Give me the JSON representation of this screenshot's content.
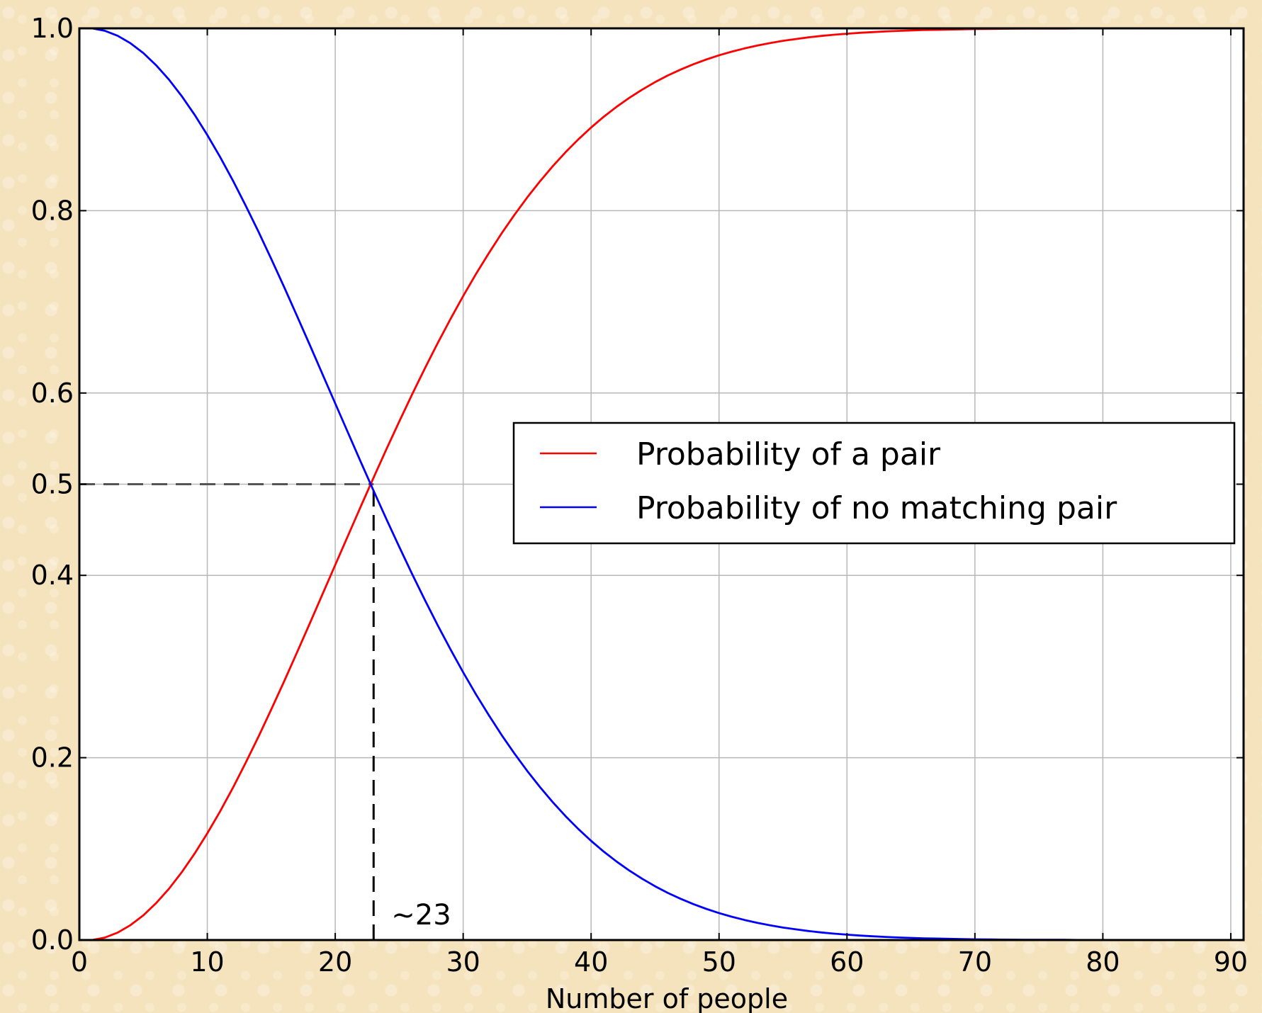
{
  "chart_data": {
    "type": "line",
    "xlabel": "Number of people",
    "ylabel": "",
    "xlim": [
      0,
      91
    ],
    "ylim": [
      0,
      1.0
    ],
    "x_ticks": [
      0,
      10,
      20,
      30,
      40,
      50,
      60,
      70,
      80,
      90
    ],
    "x_tick_labels": [
      "0",
      "10",
      "20",
      "30",
      "40",
      "50",
      "60",
      "70",
      "80",
      "90"
    ],
    "y_ticks": [
      0.0,
      0.2,
      0.4,
      0.5,
      0.6,
      0.8,
      1.0
    ],
    "y_tick_labels": [
      "0.0",
      "0.2",
      "0.4",
      "0.5",
      "0.6",
      "0.8",
      "1.0"
    ],
    "grid": true,
    "legend_position": "center-right",
    "x": [
      0,
      1,
      2,
      3,
      4,
      5,
      6,
      7,
      8,
      9,
      10,
      11,
      12,
      13,
      14,
      15,
      16,
      17,
      18,
      19,
      20,
      21,
      22,
      23,
      24,
      25,
      26,
      27,
      28,
      29,
      30,
      31,
      32,
      33,
      34,
      35,
      36,
      37,
      38,
      39,
      40,
      41,
      42,
      43,
      44,
      45,
      46,
      47,
      48,
      49,
      50,
      51,
      52,
      53,
      54,
      55,
      56,
      57,
      58,
      59,
      60,
      61,
      62,
      63,
      64,
      65,
      66,
      67,
      68,
      69,
      70,
      71,
      72,
      73,
      74,
      75,
      76,
      77,
      78,
      79,
      80,
      81,
      82,
      83,
      84,
      85,
      86,
      87,
      88,
      89,
      90,
      91
    ],
    "series": [
      {
        "name": "Probability of a pair",
        "color": "#ff0000",
        "values": [
          0,
          0,
          0.0027,
          0.0082,
          0.0164,
          0.0271,
          0.0405,
          0.0562,
          0.0743,
          0.0946,
          0.1169,
          0.1411,
          0.167,
          0.1944,
          0.2231,
          0.2529,
          0.2836,
          0.315,
          0.3469,
          0.3791,
          0.4114,
          0.4437,
          0.4757,
          0.5073,
          0.5383,
          0.5687,
          0.5982,
          0.6269,
          0.6545,
          0.681,
          0.7063,
          0.7305,
          0.7533,
          0.775,
          0.7953,
          0.8144,
          0.8322,
          0.8487,
          0.8641,
          0.8782,
          0.8912,
          0.9032,
          0.914,
          0.9239,
          0.9329,
          0.941,
          0.9483,
          0.9548,
          0.9606,
          0.9658,
          0.9704,
          0.9744,
          0.978,
          0.9811,
          0.9839,
          0.9863,
          0.9883,
          0.9901,
          0.9917,
          0.993,
          0.9941,
          0.9951,
          0.9959,
          0.9966,
          0.9972,
          0.9977,
          0.9981,
          0.9984,
          0.9987,
          0.999,
          0.9992,
          0.9993,
          0.9995,
          0.9996,
          0.9997,
          0.9997,
          0.9998,
          0.9998,
          0.9999,
          0.9999,
          0.9999,
          0.9999,
          1.0,
          1.0,
          1.0,
          1.0,
          1.0,
          1.0,
          1.0,
          1.0,
          1.0,
          1.0
        ]
      },
      {
        "name": "Probability of no matching pair",
        "color": "#0000ff",
        "values": [
          1,
          1,
          0.9973,
          0.9918,
          0.9836,
          0.9729,
          0.9595,
          0.9438,
          0.9257,
          0.9054,
          0.8831,
          0.8589,
          0.833,
          0.8056,
          0.7769,
          0.7471,
          0.7164,
          0.685,
          0.6531,
          0.6209,
          0.5886,
          0.5563,
          0.5243,
          0.4927,
          0.4617,
          0.4313,
          0.4018,
          0.3731,
          0.3455,
          0.319,
          0.2937,
          0.2695,
          0.2467,
          0.225,
          0.2047,
          0.1856,
          0.1678,
          0.1513,
          0.1359,
          0.1218,
          0.1088,
          0.0968,
          0.086,
          0.0761,
          0.0671,
          0.059,
          0.0517,
          0.0452,
          0.0394,
          0.0342,
          0.0296,
          0.0256,
          0.022,
          0.0189,
          0.0161,
          0.0137,
          0.0117,
          0.0099,
          0.0083,
          0.007,
          0.0059,
          0.0049,
          0.0041,
          0.0034,
          0.0028,
          0.0023,
          0.0019,
          0.0016,
          0.0013,
          0.001,
          0.0008,
          0.0007,
          0.0005,
          0.0004,
          0.0003,
          0.0003,
          0.0002,
          0.0002,
          0.0001,
          0.0001,
          0.0001,
          0.0001,
          0,
          0,
          0,
          0,
          0,
          0,
          0,
          0,
          0,
          0
        ]
      }
    ],
    "annotations": [
      {
        "text": "~23",
        "x": 23,
        "y": 0.5
      }
    ],
    "reference_lines": [
      {
        "orientation": "horizontal",
        "y": 0.5,
        "x_from": 0,
        "x_to": 23,
        "style": "dashed",
        "color": "#555555"
      },
      {
        "orientation": "vertical",
        "x": 23,
        "y_from": 0,
        "y_to": 0.5,
        "style": "dashed",
        "color": "#000000"
      }
    ]
  }
}
